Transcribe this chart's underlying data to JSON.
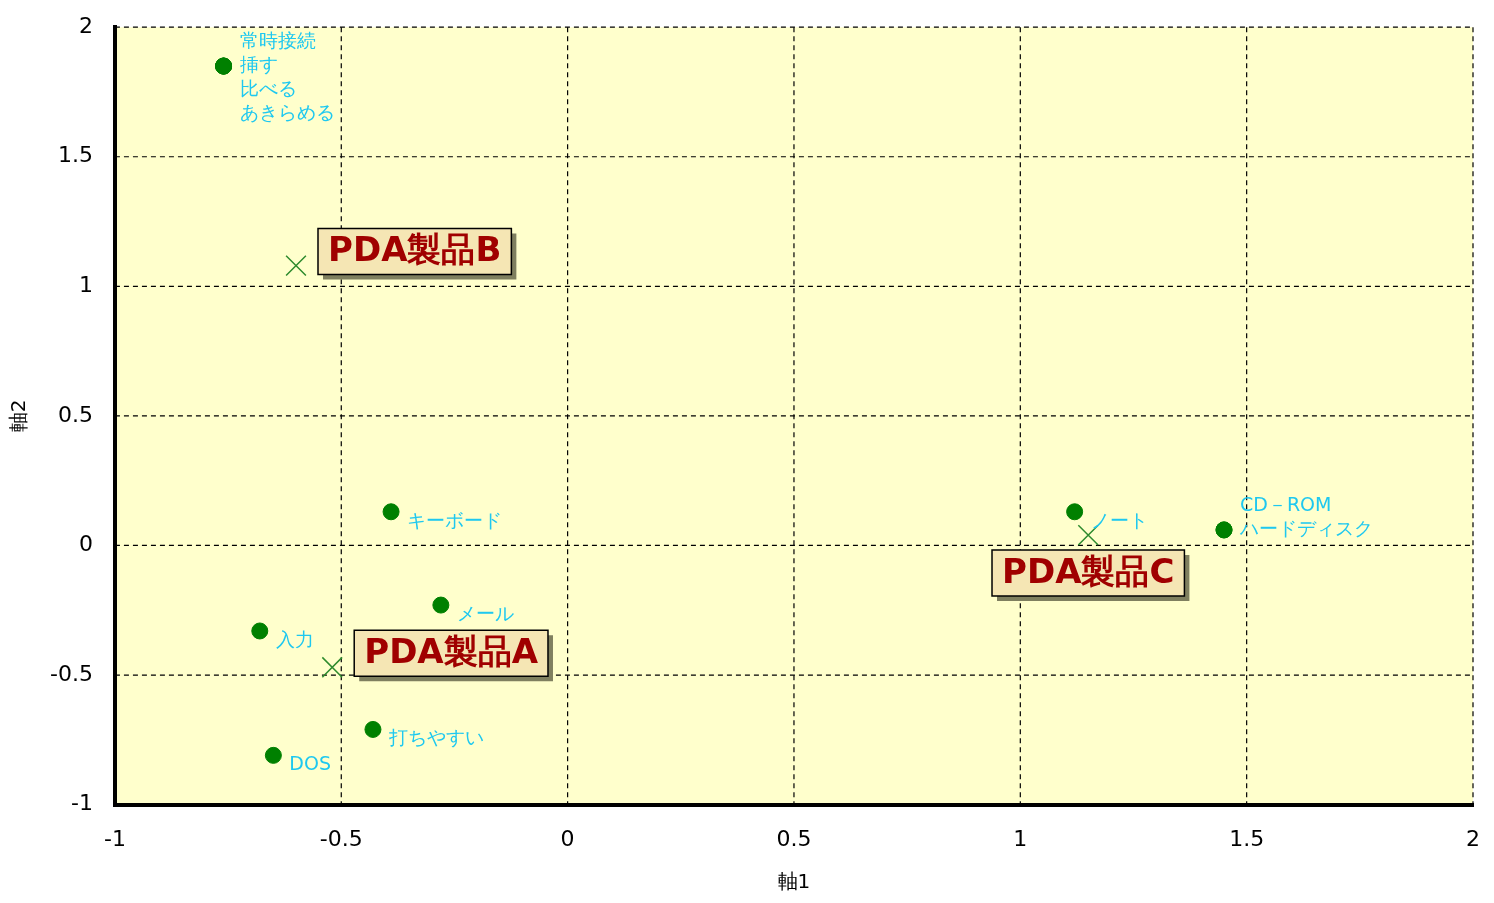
{
  "chart_data": {
    "type": "scatter",
    "xlabel": "軸1",
    "ylabel": "軸2",
    "xlim": [
      -1,
      2
    ],
    "xticks": [
      -1,
      -0.5,
      0,
      0.5,
      1,
      1.5,
      2
    ],
    "ylim": [
      -1,
      2
    ],
    "yticks": [
      -1,
      -0.5,
      0,
      0.5,
      1,
      1.5,
      2
    ],
    "grid": true,
    "legend": false,
    "series": [
      {
        "marker": "circle",
        "color": "#008000",
        "x": [
          -0.76,
          -0.76,
          -0.76,
          -0.76,
          -0.39,
          -0.28,
          -0.68,
          -0.43,
          -0.65,
          1.12,
          1.45,
          1.45
        ],
        "values": [
          1.85,
          1.85,
          1.85,
          1.85,
          0.13,
          -0.23,
          -0.33,
          -0.71,
          -0.81,
          0.13,
          0.06,
          0.06
        ],
        "value_labels": [
          "常時接続",
          "挿す",
          "比べる",
          "あきらめる",
          "キーボード",
          "メール",
          "入力",
          "打ちやすい",
          "DOS",
          "ノート",
          "CD－ROM",
          "ハードディスク"
        ]
      },
      {
        "marker": "cross",
        "color": "#2e8b2e",
        "x": [
          -0.6,
          -0.52,
          1.15
        ],
        "values": [
          1.08,
          -0.47,
          0.04
        ],
        "value_labels": [
          "PDA製品B",
          "PDA製品A",
          "PDA製品C"
        ]
      }
    ]
  }
}
